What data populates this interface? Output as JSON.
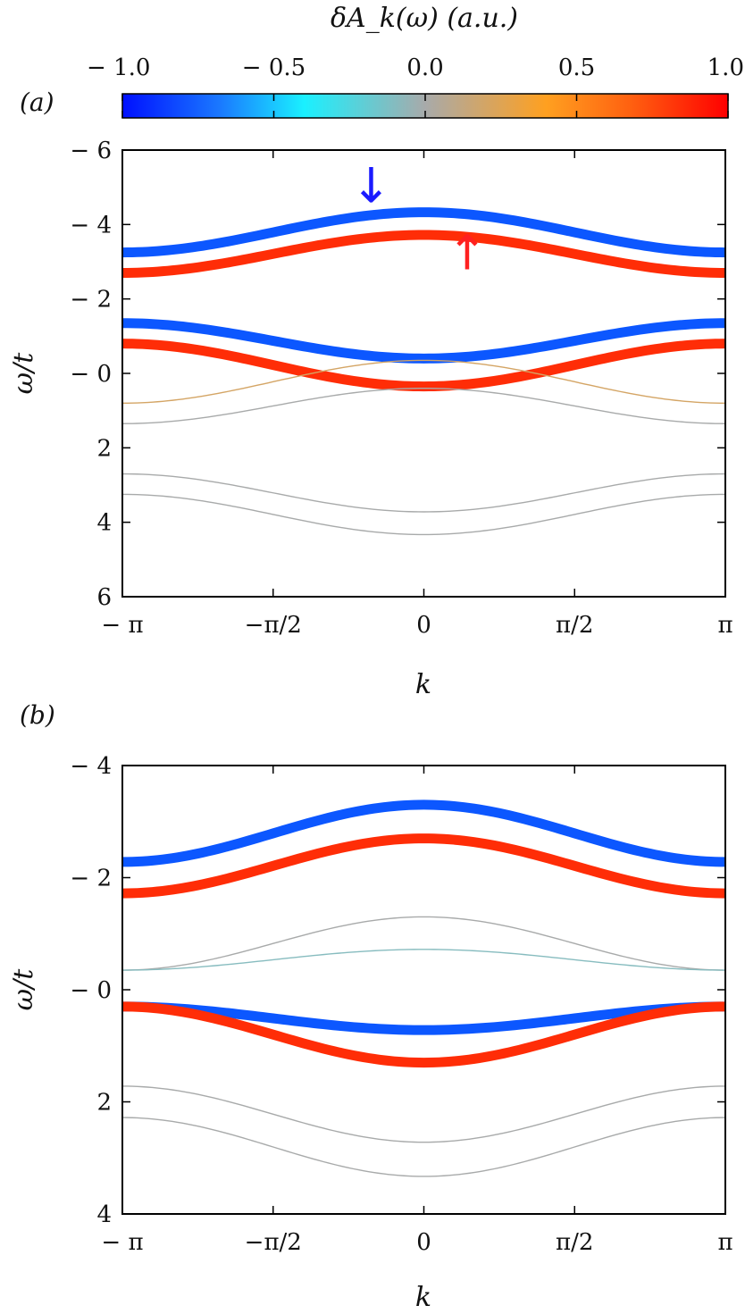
{
  "colorbar": {
    "title": "δA_k(ω)  (a.u.)",
    "ticks": [
      -1.0,
      -0.5,
      0.0,
      0.5,
      1.0
    ],
    "tick_labels": [
      "− 1.0",
      "− 0.5",
      "0.0",
      "0.5",
      "1.0"
    ],
    "colors": [
      "#0010ff",
      "#1aa8ff",
      "#22f0ff",
      "#a8aaaa",
      "#ffa020",
      "#ff6010",
      "#ff0000"
    ]
  },
  "chart_data": [
    {
      "type": "line",
      "panel_label": "(a)",
      "xlabel": "k",
      "ylabel": "ω/t",
      "xlim": [
        -3.14159,
        3.14159
      ],
      "ylim": [
        -6,
        6
      ],
      "y_inverted": true,
      "xtick_labels": [
        "− π",
        "−π/2",
        "0",
        "π/2",
        "π"
      ],
      "ytick_labels": [
        "− 6",
        "− 4",
        "− 2",
        "− 0",
        "2",
        "4",
        "6"
      ],
      "grid": false,
      "annotations": [
        {
          "symbol": "↓",
          "color": "#1a1aff",
          "x": -0.55,
          "y": -4.6
        },
        {
          "symbol": "↑",
          "color": "#ff2020",
          "x": 0.45,
          "y": -2.8
        }
      ],
      "series": [
        {
          "edge": -3.25,
          "center": -4.33,
          "weight": -0.85
        },
        {
          "edge": -2.7,
          "center": -3.72,
          "weight": 0.85
        },
        {
          "edge": -1.35,
          "center": -0.4,
          "weight": -0.85
        },
        {
          "edge": -0.8,
          "center": 0.35,
          "weight": 0.85
        },
        {
          "edge": 0.8,
          "center": -0.35,
          "weight": 0.2
        },
        {
          "edge": 1.35,
          "center": 0.4,
          "weight": 0.0
        },
        {
          "edge": 2.7,
          "center": 3.72,
          "weight": 0.0
        },
        {
          "edge": 3.25,
          "center": 4.33,
          "weight": 0.0
        }
      ]
    },
    {
      "type": "line",
      "panel_label": "(b)",
      "xlabel": "k",
      "ylabel": "ω/t",
      "xlim": [
        -3.14159,
        3.14159
      ],
      "ylim": [
        -4,
        4
      ],
      "y_inverted": true,
      "xtick_labels": [
        "− π",
        "−π/2",
        "0",
        "π/2",
        "π"
      ],
      "ytick_labels": [
        "− 4",
        "− 2",
        "− 0",
        "2",
        "4"
      ],
      "grid": false,
      "series": [
        {
          "edge": -2.28,
          "center": -3.3,
          "weight": -0.85
        },
        {
          "edge": -1.72,
          "center": -2.7,
          "weight": 0.85
        },
        {
          "edge": -0.35,
          "center": -1.3,
          "weight": 0.0
        },
        {
          "edge": -0.35,
          "center": -0.72,
          "weight": -0.1
        },
        {
          "edge": 0.3,
          "center": 0.72,
          "weight": -0.85
        },
        {
          "edge": 0.3,
          "center": 1.3,
          "weight": 0.85
        },
        {
          "edge": 1.72,
          "center": 2.72,
          "weight": 0.0
        },
        {
          "edge": 2.28,
          "center": 3.33,
          "weight": 0.0
        }
      ]
    }
  ]
}
